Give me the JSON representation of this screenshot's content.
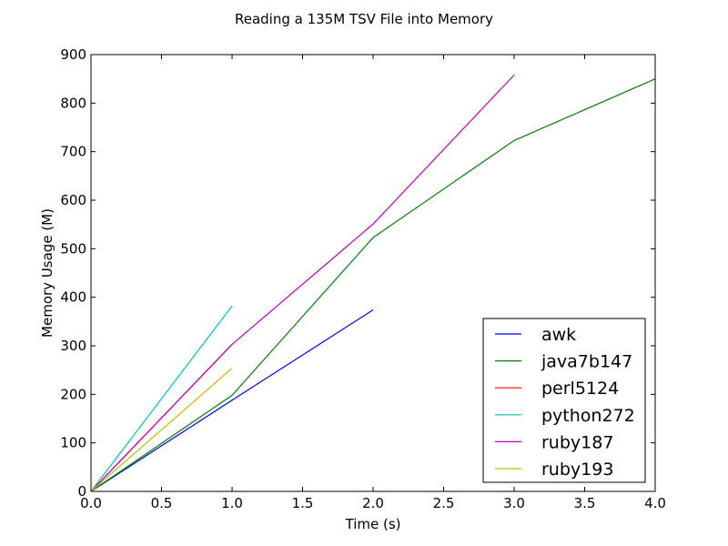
{
  "chart_data": {
    "type": "line",
    "title": "Reading a 135M TSV File into Memory",
    "xlabel": "Time (s)",
    "ylabel": "Memory Usage (M)",
    "xlim": [
      0,
      4.0
    ],
    "ylim": [
      0,
      900
    ],
    "xticks": [
      "0.0",
      "0.5",
      "1.0",
      "1.5",
      "2.0",
      "2.5",
      "3.0",
      "3.5",
      "4.0"
    ],
    "yticks": [
      "0",
      "100",
      "200",
      "300",
      "400",
      "500",
      "600",
      "700",
      "800",
      "900"
    ],
    "grid": false,
    "legend_position": "lower-right",
    "series": [
      {
        "name": "awk",
        "color": "#0000ff",
        "x": [
          0,
          1,
          2
        ],
        "y": [
          0,
          188,
          374
        ]
      },
      {
        "name": "java7b147",
        "color": "#008000",
        "x": [
          0,
          1,
          2,
          3,
          4
        ],
        "y": [
          0,
          198,
          523,
          723,
          850
        ]
      },
      {
        "name": "perl5124",
        "color": "#ff0000",
        "x": [
          0,
          1
        ],
        "y": [
          0,
          303
        ]
      },
      {
        "name": "python272",
        "color": "#00bfbf",
        "x": [
          0,
          1
        ],
        "y": [
          0,
          382
        ]
      },
      {
        "name": "ruby187",
        "color": "#bf00bf",
        "x": [
          0,
          1,
          2,
          3
        ],
        "y": [
          0,
          303,
          551,
          858
        ]
      },
      {
        "name": "ruby193",
        "color": "#bfbf00",
        "x": [
          0,
          1
        ],
        "y": [
          0,
          254
        ]
      }
    ]
  }
}
